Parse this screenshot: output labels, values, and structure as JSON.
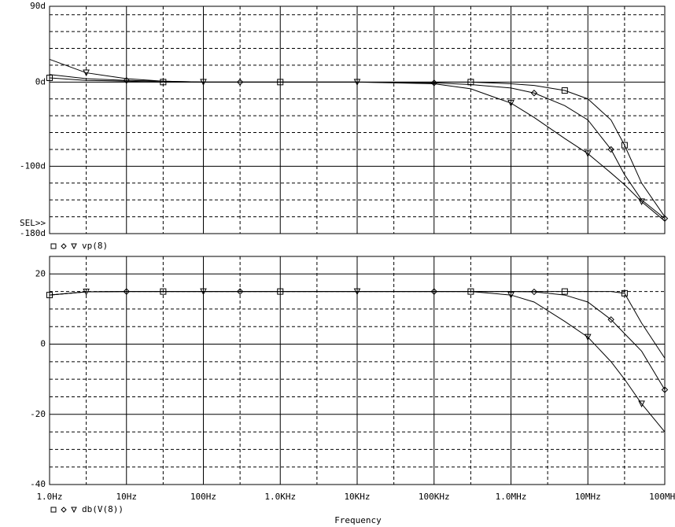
{
  "chart_data": [
    {
      "type": "line",
      "legend_text": "vp(8)",
      "annotation": "SEL>>",
      "x": [
        1,
        3,
        10,
        30,
        100,
        300,
        1000,
        10000,
        100000,
        300000,
        1000000,
        2000000,
        5000000,
        10000000,
        20000000,
        30000000,
        50000000,
        100000000
      ],
      "series": [
        {
          "marker": "square",
          "color": "#000000",
          "values": [
            5,
            2,
            1,
            0,
            0,
            0,
            0,
            0,
            0,
            0,
            -2,
            -4,
            -10,
            -20,
            -45,
            -75,
            -120,
            -160
          ]
        },
        {
          "marker": "diamond",
          "color": "#000000",
          "values": [
            9,
            4,
            2,
            1,
            0,
            0,
            0,
            0,
            -1,
            -3,
            -7,
            -13,
            -28,
            -45,
            -80,
            -110,
            -140,
            -162
          ]
        },
        {
          "marker": "triangle",
          "color": "#000000",
          "values": [
            27,
            11,
            4,
            1,
            0,
            0,
            0,
            0,
            -2,
            -8,
            -25,
            -42,
            -67,
            -85,
            -108,
            -122,
            -142,
            -165
          ]
        }
      ],
      "ylim": [
        -180,
        90
      ],
      "yticks": [
        {
          "value": 90,
          "label": "90d"
        },
        {
          "value": 0,
          "label": "0d"
        },
        {
          "value": -100,
          "label": "-100d"
        },
        {
          "value": -180,
          "label": "-180d"
        }
      ],
      "minor_yticks": [
        80,
        60,
        40,
        20,
        -20,
        -40,
        -60,
        -80,
        -120,
        -140,
        -160
      ],
      "grid": true
    },
    {
      "type": "line",
      "legend_text": "db(V(8))",
      "x_label": "Frequency",
      "log_x": true,
      "x": [
        1,
        3,
        10,
        30,
        100,
        300,
        1000,
        10000,
        100000,
        300000,
        1000000,
        2000000,
        5000000,
        10000000,
        20000000,
        30000000,
        50000000,
        100000000
      ],
      "series": [
        {
          "marker": "square",
          "color": "#000000",
          "values": [
            14,
            14.9,
            15,
            15,
            15,
            15,
            15,
            15,
            15,
            15,
            15,
            15,
            15,
            15,
            15,
            14.5,
            6,
            -4
          ]
        },
        {
          "marker": "diamond",
          "color": "#000000",
          "values": [
            14,
            14.9,
            15,
            15,
            15,
            15,
            15,
            15,
            15,
            15,
            15,
            14.9,
            14,
            12,
            7,
            3,
            -2,
            -13
          ]
        },
        {
          "marker": "triangle",
          "color": "#000000",
          "values": [
            14,
            14.9,
            15,
            15,
            15,
            15,
            15,
            15,
            15,
            15,
            14,
            12,
            6.5,
            2,
            -5,
            -10,
            -17,
            -25
          ]
        }
      ],
      "xlim": [
        1,
        100000000
      ],
      "xticks": [
        {
          "value": 1,
          "label": "1.0Hz"
        },
        {
          "value": 10,
          "label": "10Hz"
        },
        {
          "value": 100,
          "label": "100Hz"
        },
        {
          "value": 1000,
          "label": "1.0KHz"
        },
        {
          "value": 10000,
          "label": "10KHz"
        },
        {
          "value": 100000,
          "label": "100KHz"
        },
        {
          "value": 1000000,
          "label": "1.0MHz"
        },
        {
          "value": 10000000,
          "label": "10MHz"
        },
        {
          "value": 100000000,
          "label": "100MHz"
        }
      ],
      "minor_xticks": [
        3,
        30,
        300,
        3000,
        30000,
        300000,
        3000000,
        30000000
      ],
      "ylim": [
        -40,
        25
      ],
      "yticks": [
        20,
        0,
        -20,
        -40
      ],
      "minor_yticks": [
        15,
        10,
        5,
        -5,
        -10,
        -15,
        -25,
        -30,
        -35
      ],
      "grid": true
    }
  ]
}
